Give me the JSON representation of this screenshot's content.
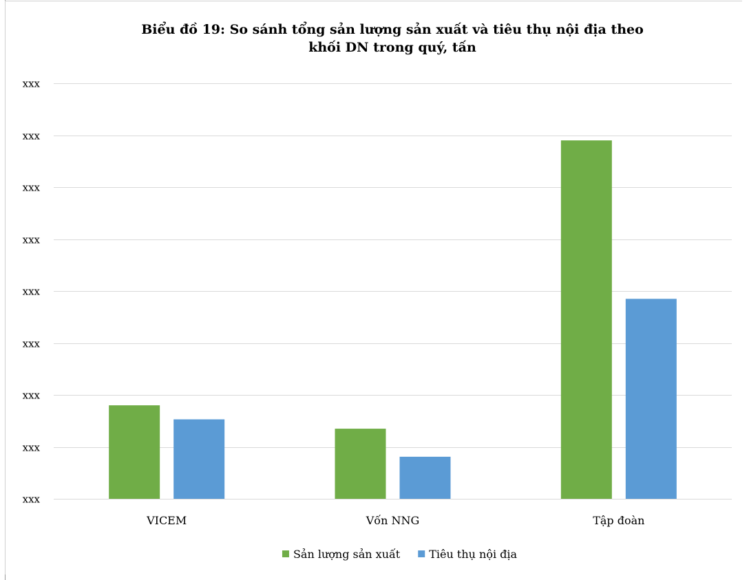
{
  "chart_data": {
    "type": "bar",
    "title": "Biểu đồ 19: So sánh tổng sản lượng sản xuất và tiêu thụ nội địa theo khối DN trong quý, tấn",
    "title_lines": [
      "Biểu đồ 19: So sánh tổng sản lượng sản xuất và tiêu thụ nội địa theo",
      "khối DN trong quý, tấn"
    ],
    "categories": [
      "VICEM",
      "Vốn NNG",
      "Tập đoàn"
    ],
    "series": [
      {
        "name": "Sản lượng sản xuất",
        "color": "#70ad47",
        "values": [
          1.8,
          1.35,
          6.9
        ]
      },
      {
        "name": "Tiêu thụ nội địa",
        "color": "#5b9bd5",
        "values": [
          1.53,
          0.81,
          3.85
        ]
      }
    ],
    "y_tick_labels": [
      "xxx",
      "xxx",
      "xxx",
      "xxx",
      "xxx",
      "xxx",
      "xxx",
      "xxx",
      "xxx"
    ],
    "ylim": [
      0,
      8
    ],
    "grid": true,
    "legend_position": "bottom"
  }
}
